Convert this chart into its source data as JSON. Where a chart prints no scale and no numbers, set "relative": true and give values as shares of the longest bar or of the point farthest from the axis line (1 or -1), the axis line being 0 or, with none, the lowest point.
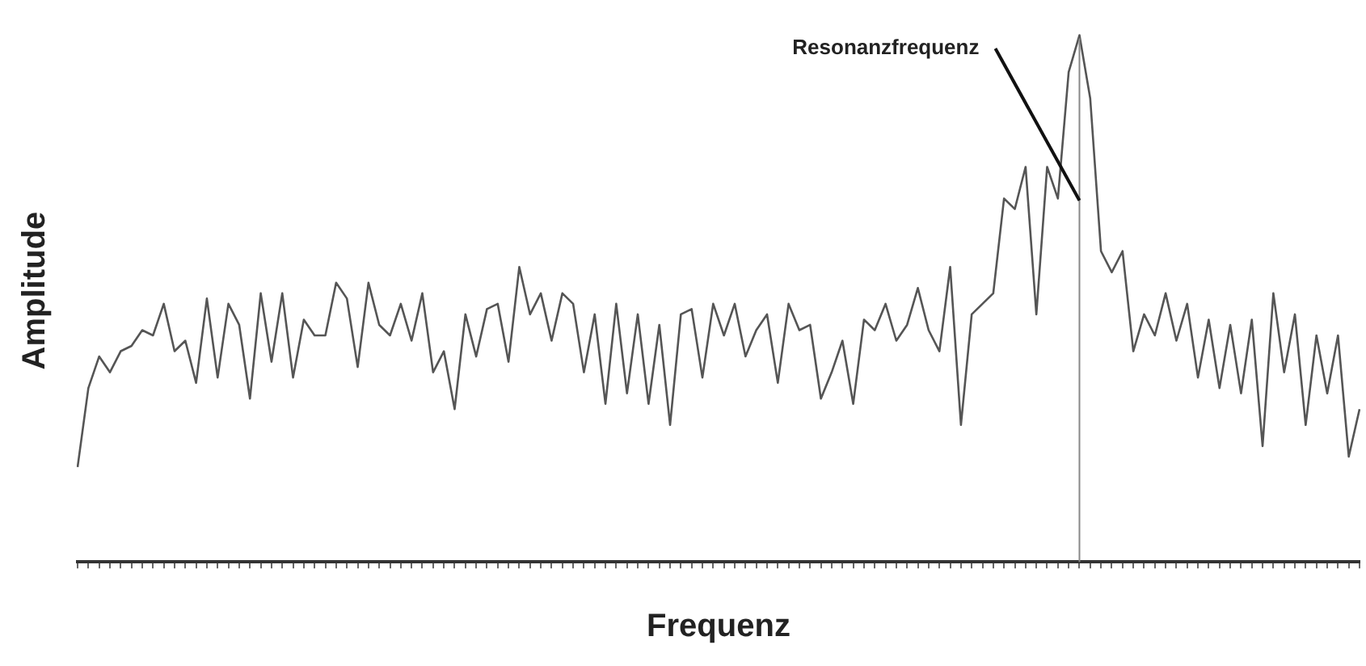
{
  "chart_data": {
    "type": "line",
    "relative": true,
    "xlabel": "Frequenz",
    "ylabel": "Amplitude",
    "categories": [
      null,
      null,
      null,
      null,
      null,
      null,
      null,
      null,
      null,
      null,
      null,
      null,
      null,
      null,
      null,
      null,
      null,
      null,
      null,
      null,
      null,
      null,
      null,
      null,
      null,
      null,
      null,
      null,
      null,
      null,
      null,
      null,
      null,
      null,
      null,
      null,
      null,
      null,
      null,
      null,
      null,
      null,
      null,
      null,
      null,
      null,
      null,
      null,
      null,
      null,
      null,
      null,
      null,
      null,
      null,
      null,
      null,
      null,
      null,
      null,
      null,
      null,
      null,
      null,
      null,
      null,
      null,
      null,
      null,
      null,
      null,
      null,
      null,
      null,
      null,
      null,
      null,
      null,
      null,
      null,
      null,
      null,
      null,
      null,
      null,
      null,
      null,
      null,
      null,
      null,
      null,
      null,
      null,
      null,
      null,
      null,
      null,
      null,
      null,
      null,
      null,
      null,
      null,
      null,
      null,
      null,
      null,
      null,
      null,
      null,
      null,
      null,
      null,
      null,
      null,
      null,
      null,
      null,
      null,
      null
    ],
    "annotations": [
      "Resonanzfrequenz"
    ],
    "series": [
      {
        "color": "#555555",
        "values": [
          0.18,
          0.33,
          0.39,
          0.36,
          0.4,
          0.41,
          0.44,
          0.43,
          0.49,
          0.4,
          0.42,
          0.34,
          0.5,
          0.35,
          0.49,
          0.45,
          0.31,
          0.51,
          0.38,
          0.51,
          0.35,
          0.46,
          0.43,
          0.43,
          0.53,
          0.5,
          0.37,
          0.53,
          0.45,
          0.43,
          0.49,
          0.42,
          0.51,
          0.36,
          0.4,
          0.29,
          0.47,
          0.39,
          0.48,
          0.49,
          0.38,
          0.56,
          0.47,
          0.51,
          0.42,
          0.51,
          0.49,
          0.36,
          0.47,
          0.3,
          0.49,
          0.32,
          0.47,
          0.3,
          0.45,
          0.26,
          0.47,
          0.48,
          0.35,
          0.49,
          0.43,
          0.49,
          0.39,
          0.44,
          0.47,
          0.34,
          0.49,
          0.44,
          0.45,
          0.31,
          0.36,
          0.42,
          0.3,
          0.46,
          0.44,
          0.49,
          0.42,
          0.45,
          0.52,
          0.44,
          0.4,
          0.56,
          0.26,
          0.47,
          0.49,
          0.51,
          0.69,
          0.67,
          0.75,
          0.47,
          0.75,
          0.69,
          0.93,
          1,
          0.88,
          0.59,
          0.55,
          0.59,
          0.4,
          0.47,
          0.43,
          0.51,
          0.42,
          0.49,
          0.35,
          0.46,
          0.33,
          0.45,
          0.32,
          0.46,
          0.22,
          0.51,
          0.36,
          0.47,
          0.26,
          0.43,
          0.32,
          0.43,
          0.2,
          0.29
        ]
      }
    ]
  }
}
